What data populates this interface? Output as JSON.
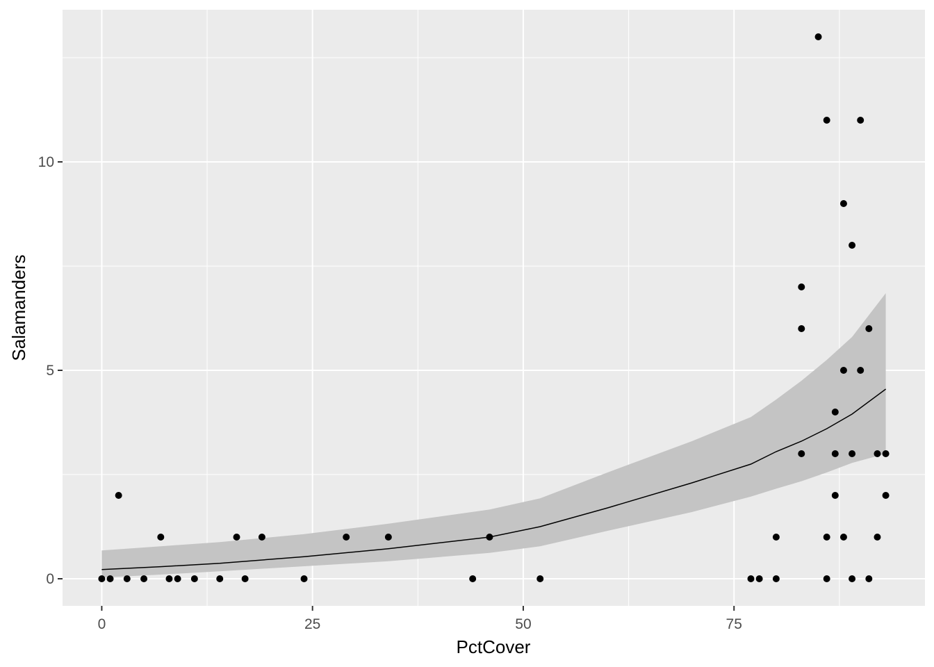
{
  "chart_data": {
    "type": "scatter",
    "title": "",
    "xlabel": "PctCover",
    "ylabel": "Salamanders",
    "xlim": [
      -4.65,
      97.65
    ],
    "ylim": [
      -0.65,
      13.65
    ],
    "x_ticks": [
      0,
      25,
      50,
      75
    ],
    "x_tick_labels": [
      "0",
      "25",
      "50",
      "75"
    ],
    "y_ticks": [
      0,
      5,
      10
    ],
    "y_tick_labels": [
      "0",
      "5",
      "10"
    ],
    "grid": true,
    "legend": "none",
    "colors": {
      "panel_background": "#ebebeb",
      "gridline": "#ffffff",
      "point": "#000000",
      "ribbon": "#c4c4c4",
      "fit_line": "#000000"
    },
    "points": [
      {
        "x": 0,
        "y": 0
      },
      {
        "x": 1,
        "y": 0
      },
      {
        "x": 2,
        "y": 2
      },
      {
        "x": 3,
        "y": 0
      },
      {
        "x": 5,
        "y": 0
      },
      {
        "x": 7,
        "y": 1
      },
      {
        "x": 8,
        "y": 0
      },
      {
        "x": 9,
        "y": 0
      },
      {
        "x": 11,
        "y": 0
      },
      {
        "x": 14,
        "y": 0
      },
      {
        "x": 16,
        "y": 1
      },
      {
        "x": 17,
        "y": 0
      },
      {
        "x": 19,
        "y": 1
      },
      {
        "x": 24,
        "y": 0
      },
      {
        "x": 29,
        "y": 1
      },
      {
        "x": 34,
        "y": 1
      },
      {
        "x": 44,
        "y": 0
      },
      {
        "x": 46,
        "y": 1
      },
      {
        "x": 52,
        "y": 0
      },
      {
        "x": 77,
        "y": 0
      },
      {
        "x": 78,
        "y": 0
      },
      {
        "x": 80,
        "y": 1
      },
      {
        "x": 80,
        "y": 0
      },
      {
        "x": 83,
        "y": 7
      },
      {
        "x": 83,
        "y": 6
      },
      {
        "x": 83,
        "y": 3
      },
      {
        "x": 85,
        "y": 13
      },
      {
        "x": 86,
        "y": 11
      },
      {
        "x": 86,
        "y": 1
      },
      {
        "x": 86,
        "y": 0
      },
      {
        "x": 87,
        "y": 4
      },
      {
        "x": 87,
        "y": 3
      },
      {
        "x": 87,
        "y": 2
      },
      {
        "x": 88,
        "y": 9
      },
      {
        "x": 88,
        "y": 5
      },
      {
        "x": 88,
        "y": 1
      },
      {
        "x": 89,
        "y": 8
      },
      {
        "x": 89,
        "y": 3
      },
      {
        "x": 89,
        "y": 0
      },
      {
        "x": 90,
        "y": 11
      },
      {
        "x": 90,
        "y": 5
      },
      {
        "x": 91,
        "y": 6
      },
      {
        "x": 91,
        "y": 0
      },
      {
        "x": 92,
        "y": 3
      },
      {
        "x": 92,
        "y": 1
      },
      {
        "x": 93,
        "y": 3
      },
      {
        "x": 93,
        "y": 2
      }
    ],
    "fit": {
      "x": [
        0,
        7,
        14,
        24,
        34,
        46,
        52,
        60,
        70,
        77,
        80,
        83,
        86,
        89,
        93
      ],
      "y": [
        0.22,
        0.29,
        0.37,
        0.53,
        0.72,
        1.0,
        1.25,
        1.7,
        2.3,
        2.75,
        3.05,
        3.3,
        3.6,
        3.95,
        4.55
      ],
      "lower": [
        0.03,
        0.1,
        0.18,
        0.3,
        0.42,
        0.62,
        0.78,
        1.15,
        1.6,
        1.97,
        2.16,
        2.34,
        2.55,
        2.78,
        3.0
      ],
      "upper": [
        0.68,
        0.78,
        0.88,
        1.07,
        1.32,
        1.66,
        1.93,
        2.55,
        3.3,
        3.88,
        4.3,
        4.75,
        5.25,
        5.8,
        6.85
      ]
    }
  }
}
